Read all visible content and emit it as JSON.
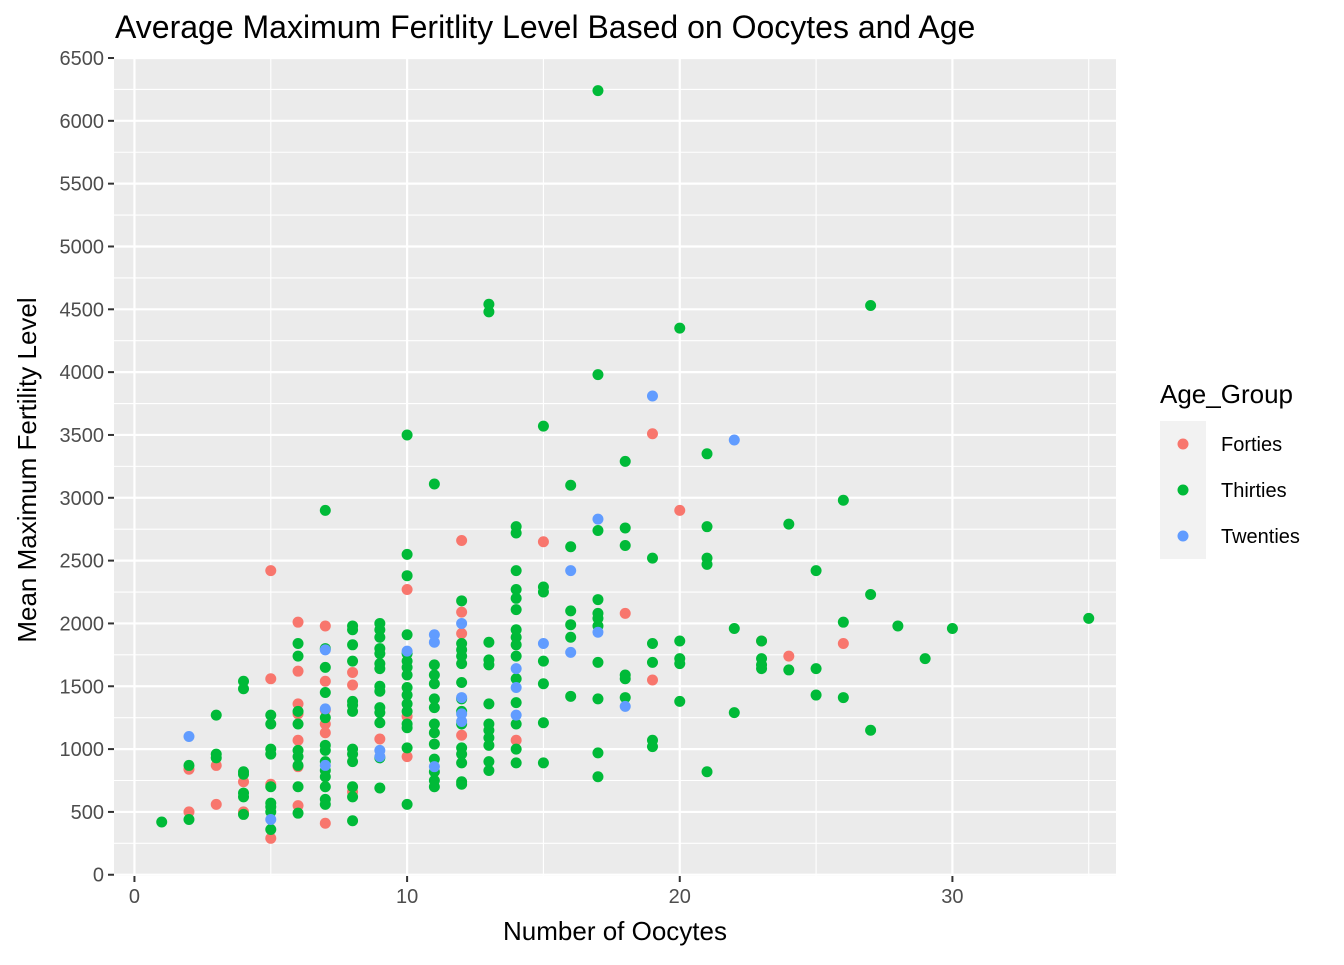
{
  "chart_data": {
    "type": "scatter",
    "title": "Average Maximum Feritlity Level Based on Oocytes and Age",
    "xlabel": "Number of Oocytes",
    "ylabel": "Mean Maximum Fertility Level",
    "xlim": [
      -0.75,
      36.0
    ],
    "ylim": [
      -10,
      6500
    ],
    "xticks": [
      0,
      10,
      20,
      30
    ],
    "yticks": [
      0,
      500,
      1000,
      1500,
      2000,
      2500,
      3000,
      3500,
      4000,
      4500,
      5000,
      5500,
      6000,
      6500
    ],
    "grid": true,
    "legend": {
      "title": "Age_Group",
      "position": "right",
      "entries": [
        "Forties",
        "Thirties",
        "Twenties"
      ]
    },
    "colors": {
      "Forties": "#f8766d",
      "Thirties": "#00ba38",
      "Twenties": "#619cff",
      "panel": "#ebebeb",
      "grid": "#ffffff"
    },
    "series": [
      {
        "name": "Forties",
        "points": [
          [
            2,
            840
          ],
          [
            2,
            500
          ],
          [
            3,
            870
          ],
          [
            3,
            560
          ],
          [
            4,
            740
          ],
          [
            4,
            500
          ],
          [
            5,
            2420
          ],
          [
            5,
            1560
          ],
          [
            5,
            720
          ],
          [
            5,
            290
          ],
          [
            6,
            2010
          ],
          [
            6,
            1620
          ],
          [
            6,
            1360
          ],
          [
            6,
            1280
          ],
          [
            6,
            1070
          ],
          [
            6,
            860
          ],
          [
            6,
            550
          ],
          [
            7,
            1980
          ],
          [
            7,
            1540
          ],
          [
            7,
            1310
          ],
          [
            7,
            1200
          ],
          [
            7,
            1130
          ],
          [
            7,
            410
          ],
          [
            8,
            1610
          ],
          [
            8,
            1510
          ],
          [
            8,
            660
          ],
          [
            9,
            1080
          ],
          [
            10,
            2270
          ],
          [
            10,
            1260
          ],
          [
            10,
            940
          ],
          [
            12,
            2660
          ],
          [
            12,
            2090
          ],
          [
            12,
            1920
          ],
          [
            12,
            1110
          ],
          [
            14,
            1070
          ],
          [
            15,
            2650
          ],
          [
            18,
            2080
          ],
          [
            19,
            3510
          ],
          [
            19,
            1550
          ],
          [
            20,
            2900
          ],
          [
            23,
            1860
          ],
          [
            24,
            1740
          ],
          [
            26,
            1840
          ]
        ]
      },
      {
        "name": "Thirties",
        "points": [
          [
            1,
            420
          ],
          [
            2,
            870
          ],
          [
            2,
            440
          ],
          [
            3,
            1270
          ],
          [
            3,
            960
          ],
          [
            3,
            930
          ],
          [
            4,
            1540
          ],
          [
            4,
            1480
          ],
          [
            4,
            820
          ],
          [
            4,
            800
          ],
          [
            4,
            650
          ],
          [
            4,
            620
          ],
          [
            4,
            480
          ],
          [
            5,
            1270
          ],
          [
            5,
            1200
          ],
          [
            5,
            1000
          ],
          [
            5,
            960
          ],
          [
            5,
            700
          ],
          [
            5,
            570
          ],
          [
            5,
            540
          ],
          [
            5,
            500
          ],
          [
            5,
            360
          ],
          [
            6,
            1840
          ],
          [
            6,
            1740
          ],
          [
            6,
            1300
          ],
          [
            6,
            1200
          ],
          [
            6,
            990
          ],
          [
            6,
            940
          ],
          [
            6,
            870
          ],
          [
            6,
            700
          ],
          [
            6,
            490
          ],
          [
            7,
            2900
          ],
          [
            7,
            1800
          ],
          [
            7,
            1650
          ],
          [
            7,
            1450
          ],
          [
            7,
            1250
          ],
          [
            7,
            1030
          ],
          [
            7,
            990
          ],
          [
            7,
            900
          ],
          [
            7,
            830
          ],
          [
            7,
            780
          ],
          [
            7,
            700
          ],
          [
            7,
            600
          ],
          [
            7,
            560
          ],
          [
            8,
            1980
          ],
          [
            8,
            1950
          ],
          [
            8,
            1830
          ],
          [
            8,
            1700
          ],
          [
            8,
            1380
          ],
          [
            8,
            1350
          ],
          [
            8,
            1300
          ],
          [
            8,
            1000
          ],
          [
            8,
            960
          ],
          [
            8,
            900
          ],
          [
            8,
            700
          ],
          [
            8,
            620
          ],
          [
            8,
            430
          ],
          [
            9,
            2000
          ],
          [
            9,
            1950
          ],
          [
            9,
            1890
          ],
          [
            9,
            1800
          ],
          [
            9,
            1760
          ],
          [
            9,
            1680
          ],
          [
            9,
            1640
          ],
          [
            9,
            1500
          ],
          [
            9,
            1460
          ],
          [
            9,
            1330
          ],
          [
            9,
            1290
          ],
          [
            9,
            1210
          ],
          [
            9,
            930
          ],
          [
            9,
            690
          ],
          [
            10,
            3500
          ],
          [
            10,
            2550
          ],
          [
            10,
            2380
          ],
          [
            10,
            1910
          ],
          [
            10,
            1760
          ],
          [
            10,
            1700
          ],
          [
            10,
            1650
          ],
          [
            10,
            1590
          ],
          [
            10,
            1490
          ],
          [
            10,
            1430
          ],
          [
            10,
            1360
          ],
          [
            10,
            1300
          ],
          [
            10,
            1200
          ],
          [
            10,
            1170
          ],
          [
            10,
            1010
          ],
          [
            10,
            560
          ],
          [
            11,
            3110
          ],
          [
            11,
            1670
          ],
          [
            11,
            1590
          ],
          [
            11,
            1520
          ],
          [
            11,
            1400
          ],
          [
            11,
            1330
          ],
          [
            11,
            1200
          ],
          [
            11,
            1130
          ],
          [
            11,
            1040
          ],
          [
            11,
            920
          ],
          [
            11,
            820
          ],
          [
            11,
            750
          ],
          [
            11,
            700
          ],
          [
            12,
            2180
          ],
          [
            12,
            1840
          ],
          [
            12,
            1790
          ],
          [
            12,
            1740
          ],
          [
            12,
            1680
          ],
          [
            12,
            1530
          ],
          [
            12,
            1400
          ],
          [
            12,
            1300
          ],
          [
            12,
            1200
          ],
          [
            12,
            1010
          ],
          [
            12,
            960
          ],
          [
            12,
            890
          ],
          [
            12,
            740
          ],
          [
            12,
            720
          ],
          [
            13,
            4540
          ],
          [
            13,
            4480
          ],
          [
            13,
            1850
          ],
          [
            13,
            1710
          ],
          [
            13,
            1670
          ],
          [
            13,
            1360
          ],
          [
            13,
            1200
          ],
          [
            13,
            1150
          ],
          [
            13,
            1090
          ],
          [
            13,
            1030
          ],
          [
            13,
            900
          ],
          [
            13,
            830
          ],
          [
            14,
            2770
          ],
          [
            14,
            2720
          ],
          [
            14,
            2420
          ],
          [
            14,
            2270
          ],
          [
            14,
            2200
          ],
          [
            14,
            2110
          ],
          [
            14,
            1950
          ],
          [
            14,
            1890
          ],
          [
            14,
            1830
          ],
          [
            14,
            1740
          ],
          [
            14,
            1560
          ],
          [
            14,
            1370
          ],
          [
            14,
            1200
          ],
          [
            14,
            1000
          ],
          [
            14,
            890
          ],
          [
            15,
            3570
          ],
          [
            15,
            2290
          ],
          [
            15,
            2250
          ],
          [
            15,
            1700
          ],
          [
            15,
            1520
          ],
          [
            15,
            1210
          ],
          [
            15,
            890
          ],
          [
            16,
            3100
          ],
          [
            16,
            2610
          ],
          [
            16,
            2100
          ],
          [
            16,
            1990
          ],
          [
            16,
            1890
          ],
          [
            16,
            1420
          ],
          [
            17,
            6240
          ],
          [
            17,
            3980
          ],
          [
            17,
            2740
          ],
          [
            17,
            2190
          ],
          [
            17,
            2080
          ],
          [
            17,
            2040
          ],
          [
            17,
            1980
          ],
          [
            17,
            1690
          ],
          [
            17,
            1400
          ],
          [
            17,
            970
          ],
          [
            17,
            780
          ],
          [
            18,
            3290
          ],
          [
            18,
            2760
          ],
          [
            18,
            2620
          ],
          [
            18,
            1590
          ],
          [
            18,
            1560
          ],
          [
            18,
            1410
          ],
          [
            19,
            2520
          ],
          [
            19,
            1840
          ],
          [
            19,
            1690
          ],
          [
            19,
            1070
          ],
          [
            19,
            1020
          ],
          [
            20,
            4350
          ],
          [
            20,
            1860
          ],
          [
            20,
            1720
          ],
          [
            20,
            1680
          ],
          [
            20,
            1380
          ],
          [
            21,
            3350
          ],
          [
            21,
            2770
          ],
          [
            21,
            2520
          ],
          [
            21,
            2470
          ],
          [
            21,
            820
          ],
          [
            22,
            1960
          ],
          [
            22,
            1290
          ],
          [
            23,
            1860
          ],
          [
            23,
            1720
          ],
          [
            23,
            1670
          ],
          [
            23,
            1640
          ],
          [
            24,
            2790
          ],
          [
            24,
            1630
          ],
          [
            25,
            2420
          ],
          [
            25,
            1640
          ],
          [
            25,
            1430
          ],
          [
            26,
            2980
          ],
          [
            26,
            2010
          ],
          [
            26,
            1410
          ],
          [
            27,
            4530
          ],
          [
            27,
            2230
          ],
          [
            27,
            1150
          ],
          [
            28,
            1980
          ],
          [
            29,
            1720
          ],
          [
            30,
            1960
          ],
          [
            35,
            2040
          ]
        ]
      },
      {
        "name": "Twenties",
        "points": [
          [
            2,
            1100
          ],
          [
            5,
            440
          ],
          [
            7,
            1790
          ],
          [
            7,
            1320
          ],
          [
            7,
            870
          ],
          [
            9,
            990
          ],
          [
            9,
            940
          ],
          [
            10,
            1780
          ],
          [
            11,
            1910
          ],
          [
            11,
            1850
          ],
          [
            11,
            860
          ],
          [
            12,
            2000
          ],
          [
            12,
            1280
          ],
          [
            12,
            1220
          ],
          [
            12,
            1410
          ],
          [
            14,
            1640
          ],
          [
            14,
            1490
          ],
          [
            14,
            1270
          ],
          [
            15,
            1840
          ],
          [
            16,
            2420
          ],
          [
            16,
            1770
          ],
          [
            17,
            2830
          ],
          [
            17,
            1930
          ],
          [
            18,
            1340
          ],
          [
            19,
            3810
          ],
          [
            22,
            3460
          ]
        ]
      }
    ]
  }
}
